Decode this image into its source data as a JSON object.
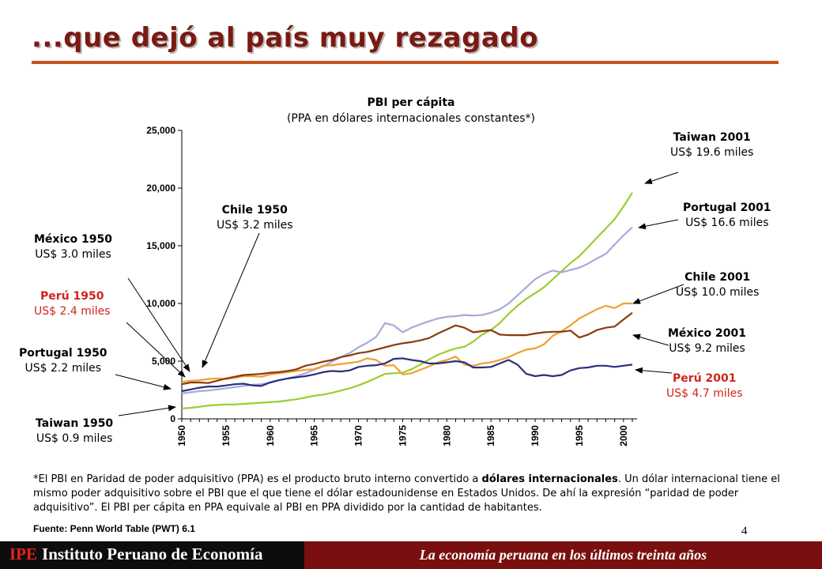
{
  "slide": {
    "title": "...que dejó al país muy rezagado",
    "page_number": "4",
    "footnote_part1": "*El PBI en Paridad de poder adquisitivo (PPA) es el producto bruto interno convertido a ",
    "footnote_bold": "dólares internacionales",
    "footnote_part2": ". Un dólar internacional tiene el mismo poder adquisitivo sobre el PBI que el que tiene el dólar estadounidense en Estados Unidos. De ahí la expresión “paridad de poder adquisitivo”. El PBI per cápita en PPA equivale al PBI en PPA dividido por la cantidad de habitantes.",
    "source": "Fuente: Penn World Table (PWT) 6.1",
    "footer_ipe": "IPE",
    "footer_institute": "Instituto Peruano de Economía",
    "footer_tagline": "La economía peruana en los últimos treinta años"
  },
  "annotations": {
    "taiwan_2001": {
      "title": "Taiwan 2001",
      "value": "US$ 19.6 miles"
    },
    "portugal_2001": {
      "title": "Portugal 2001",
      "value": "US$ 16.6 miles"
    },
    "chile_2001": {
      "title": "Chile 2001",
      "value": "US$ 10.0 miles"
    },
    "mexico_2001": {
      "title": "México 2001",
      "value": "US$ 9.2 miles"
    },
    "peru_2001": {
      "title": "Perú 2001",
      "value": "US$ 4.7 miles"
    },
    "chile_1950": {
      "title": "Chile 1950",
      "value": "US$ 3.2 miles"
    },
    "mexico_1950": {
      "title": "México 1950",
      "value": "US$ 3.0 miles"
    },
    "peru_1950": {
      "title": "Perú 1950",
      "value": "US$ 2.4 miles"
    },
    "portugal_1950": {
      "title": "Portugal 1950",
      "value": "US$ 2.2 miles"
    },
    "taiwan_1950": {
      "title": "Taiwan 1950",
      "value": "US$ 0.9 miles"
    }
  },
  "chart_data": {
    "type": "line",
    "title": "PBI per cápita",
    "subtitle": "(PPA en dólares internacionales constantes*)",
    "xlabel": "",
    "ylabel": "",
    "xlim": [
      1950,
      2001
    ],
    "ylim": [
      0,
      25000
    ],
    "y_ticks": [
      0,
      5000,
      10000,
      15000,
      20000,
      25000
    ],
    "y_tick_labels": [
      "0",
      "5,000",
      "10,000",
      "15,000",
      "20,000",
      "25,000"
    ],
    "x_ticks": [
      1950,
      1955,
      1960,
      1965,
      1970,
      1975,
      1980,
      1985,
      1990,
      1995,
      2000
    ],
    "grid": false,
    "legend": "none",
    "colors": {
      "taiwan": "#9acd32",
      "portugal": "#a9a9d9",
      "chile": "#f0a030",
      "mexico": "#8b3a10",
      "peru": "#2b2f7f",
      "annotation_red": "#d0241b",
      "title": "#7a1a12",
      "rule": "#c9521b",
      "footer": "#7a0f0f"
    },
    "x": [
      1950,
      1951,
      1952,
      1953,
      1954,
      1955,
      1956,
      1957,
      1958,
      1959,
      1960,
      1961,
      1962,
      1963,
      1964,
      1965,
      1966,
      1967,
      1968,
      1969,
      1970,
      1971,
      1972,
      1973,
      1974,
      1975,
      1976,
      1977,
      1978,
      1979,
      1980,
      1981,
      1982,
      1983,
      1984,
      1985,
      1986,
      1987,
      1988,
      1989,
      1990,
      1991,
      1992,
      1993,
      1994,
      1995,
      1996,
      1997,
      1998,
      1999,
      2000,
      2001
    ],
    "series": [
      {
        "key": "taiwan",
        "values": [
          900,
          950,
          1050,
          1150,
          1200,
          1250,
          1250,
          1300,
          1350,
          1400,
          1450,
          1500,
          1600,
          1700,
          1850,
          2000,
          2100,
          2250,
          2450,
          2650,
          2900,
          3200,
          3550,
          3900,
          3950,
          4000,
          4300,
          4700,
          5150,
          5550,
          5850,
          6100,
          6250,
          6700,
          7300,
          7700,
          8300,
          9100,
          9800,
          10400,
          10900,
          11400,
          12100,
          12800,
          13500,
          14100,
          14900,
          15700,
          16500,
          17300,
          18400,
          19600
        ]
      },
      {
        "key": "portugal",
        "values": [
          2200,
          2300,
          2400,
          2450,
          2550,
          2650,
          2750,
          2850,
          2950,
          3000,
          3150,
          3350,
          3500,
          3700,
          3950,
          4250,
          4550,
          4950,
          5350,
          5700,
          6200,
          6600,
          7100,
          8300,
          8100,
          7500,
          7900,
          8200,
          8450,
          8700,
          8850,
          8900,
          9000,
          8950,
          9000,
          9200,
          9500,
          10000,
          10700,
          11400,
          12100,
          12550,
          12850,
          12700,
          12900,
          13100,
          13450,
          13900,
          14300,
          15100,
          15900,
          16600
        ]
      },
      {
        "key": "chile",
        "values": [
          3200,
          3300,
          3350,
          3450,
          3500,
          3450,
          3550,
          3700,
          3700,
          3650,
          3850,
          3950,
          4050,
          4150,
          4250,
          4300,
          4600,
          4650,
          4750,
          4850,
          4950,
          5250,
          5100,
          4600,
          4650,
          3850,
          3950,
          4250,
          4550,
          4900,
          5100,
          5400,
          4700,
          4600,
          4800,
          4900,
          5100,
          5350,
          5700,
          6000,
          6100,
          6450,
          7200,
          7600,
          8100,
          8700,
          9100,
          9500,
          9800,
          9600,
          10000,
          10000
        ]
      },
      {
        "key": "mexico",
        "values": [
          3000,
          3150,
          3150,
          3100,
          3300,
          3500,
          3650,
          3800,
          3850,
          3900,
          4000,
          4050,
          4150,
          4300,
          4600,
          4750,
          4950,
          5100,
          5350,
          5500,
          5700,
          5800,
          6000,
          6200,
          6400,
          6550,
          6650,
          6800,
          7000,
          7400,
          7750,
          8100,
          7900,
          7500,
          7600,
          7700,
          7300,
          7250,
          7250,
          7250,
          7400,
          7500,
          7550,
          7550,
          7650,
          7050,
          7300,
          7700,
          7900,
          8000,
          8600,
          9200
        ]
      },
      {
        "key": "peru",
        "values": [
          2400,
          2550,
          2700,
          2800,
          2800,
          2900,
          3000,
          3050,
          2900,
          2850,
          3150,
          3350,
          3500,
          3600,
          3700,
          3850,
          4050,
          4150,
          4100,
          4200,
          4500,
          4600,
          4650,
          4800,
          5200,
          5250,
          5100,
          5000,
          4800,
          4800,
          4900,
          5000,
          4900,
          4450,
          4450,
          4500,
          4800,
          5100,
          4700,
          3900,
          3700,
          3800,
          3700,
          3800,
          4200,
          4400,
          4450,
          4600,
          4600,
          4500,
          4600,
          4700
        ]
      }
    ]
  }
}
